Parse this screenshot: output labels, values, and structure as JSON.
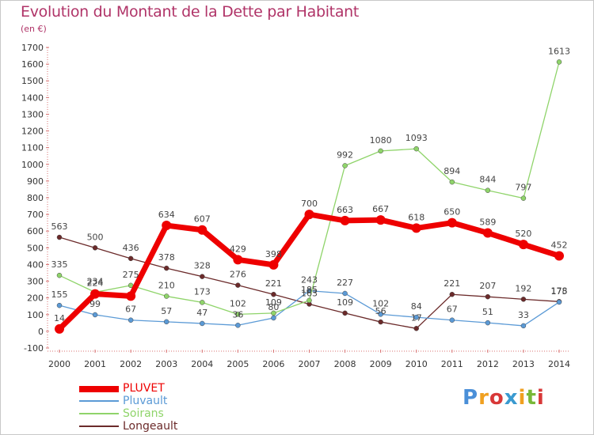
{
  "title": "Evolution du Montant de la Dette par Habitant",
  "subtitle": "(en €)",
  "logo": {
    "text": "Proxiti",
    "letters": [
      {
        "ch": "P",
        "color": "#4a8fd8"
      },
      {
        "ch": "r",
        "color": "#f0a020"
      },
      {
        "ch": "o",
        "color": "#d83838"
      },
      {
        "ch": "x",
        "color": "#3a9ad0"
      },
      {
        "ch": "i",
        "color": "#f0a020"
      },
      {
        "ch": "t",
        "color": "#78b838"
      },
      {
        "ch": "i",
        "color": "#d83838"
      }
    ]
  },
  "chart_data": {
    "type": "line",
    "title": "Evolution du Montant de la Dette par Habitant",
    "ylabel": "(en €)",
    "x": [
      "2000",
      "2001",
      "2002",
      "2003",
      "2004",
      "2005",
      "2006",
      "2007",
      "2008",
      "2009",
      "2010",
      "2011",
      "2012",
      "2013",
      "2014"
    ],
    "ylim": [
      -100,
      1700
    ],
    "yticks": [
      -100,
      0,
      100,
      200,
      300,
      400,
      500,
      600,
      700,
      800,
      900,
      1000,
      1100,
      1200,
      1300,
      1400,
      1500,
      1600,
      1700
    ],
    "grid": false,
    "legend": "bottom-left",
    "series": [
      {
        "name": "PLUVET",
        "color": "#ee0000",
        "values": [
          14,
          224,
          211,
          634,
          607,
          429,
          398,
          700,
          663,
          667,
          618,
          650,
          589,
          520,
          452
        ],
        "labels": [
          "14",
          "224",
          "",
          "634",
          "607",
          "429",
          "398",
          "700",
          "663",
          "667",
          "618",
          "650",
          "589",
          "520",
          "452"
        ]
      },
      {
        "name": "Pluvault",
        "color": "#5b9ad6",
        "values": [
          155,
          99,
          67,
          57,
          47,
          36,
          80,
          243,
          227,
          102,
          84,
          67,
          51,
          33,
          175
        ],
        "labels": [
          "155",
          "99",
          "67",
          "57",
          "47",
          "36",
          "80",
          "243",
          "227",
          "102",
          "84",
          "67",
          "51",
          "33",
          "175"
        ]
      },
      {
        "name": "Soirans",
        "color": "#8fd46a",
        "values": [
          335,
          234,
          275,
          210,
          173,
          102,
          109,
          185,
          992,
          1080,
          1093,
          894,
          844,
          797,
          1613
        ],
        "labels": [
          "335",
          "234",
          "275",
          "210",
          "173",
          "102",
          "109",
          "185",
          "992",
          "1080",
          "1093",
          "894",
          "844",
          "797",
          "1613"
        ]
      },
      {
        "name": "Longeault",
        "color": "#6b2a2a",
        "values": [
          563,
          500,
          436,
          378,
          328,
          276,
          221,
          163,
          109,
          56,
          17,
          221,
          207,
          192,
          178
        ],
        "labels": [
          "563",
          "500",
          "436",
          "378",
          "328",
          "276",
          "221",
          "163",
          "109",
          "56",
          "17",
          "221",
          "207",
          "192",
          "178"
        ]
      }
    ]
  }
}
